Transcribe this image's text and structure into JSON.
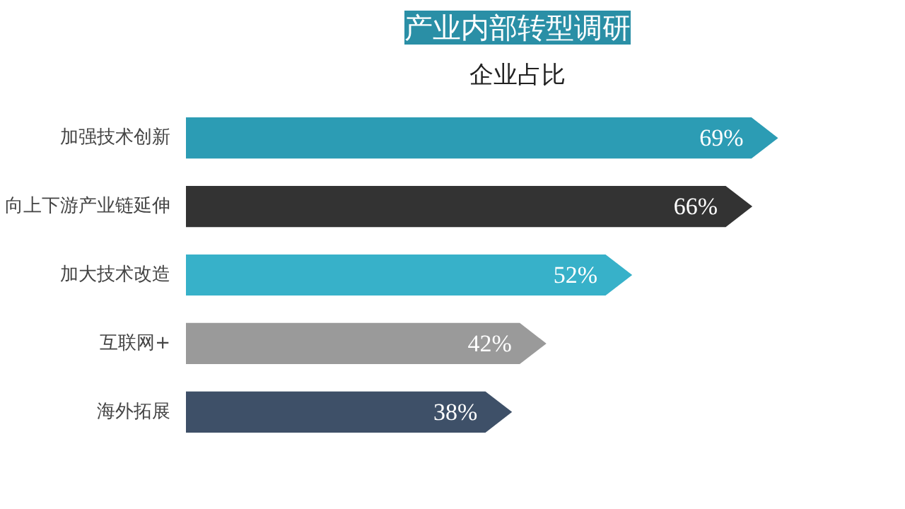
{
  "chart_data": {
    "type": "bar",
    "orientation": "horizontal",
    "title": "产业内部转型调研",
    "subtitle": "企业占比",
    "categories": [
      "加强技术创新",
      "向上下游产业链延伸",
      "加大技术改造",
      "互联网+",
      "海外拓展"
    ],
    "values": [
      69,
      66,
      52,
      42,
      38
    ],
    "colors": [
      "#2c9cb4",
      "#333333",
      "#37b1c9",
      "#9a9a9a",
      "#3e5068"
    ],
    "value_labels": [
      "69%",
      "66%",
      "52%",
      "42%",
      "38%"
    ]
  }
}
